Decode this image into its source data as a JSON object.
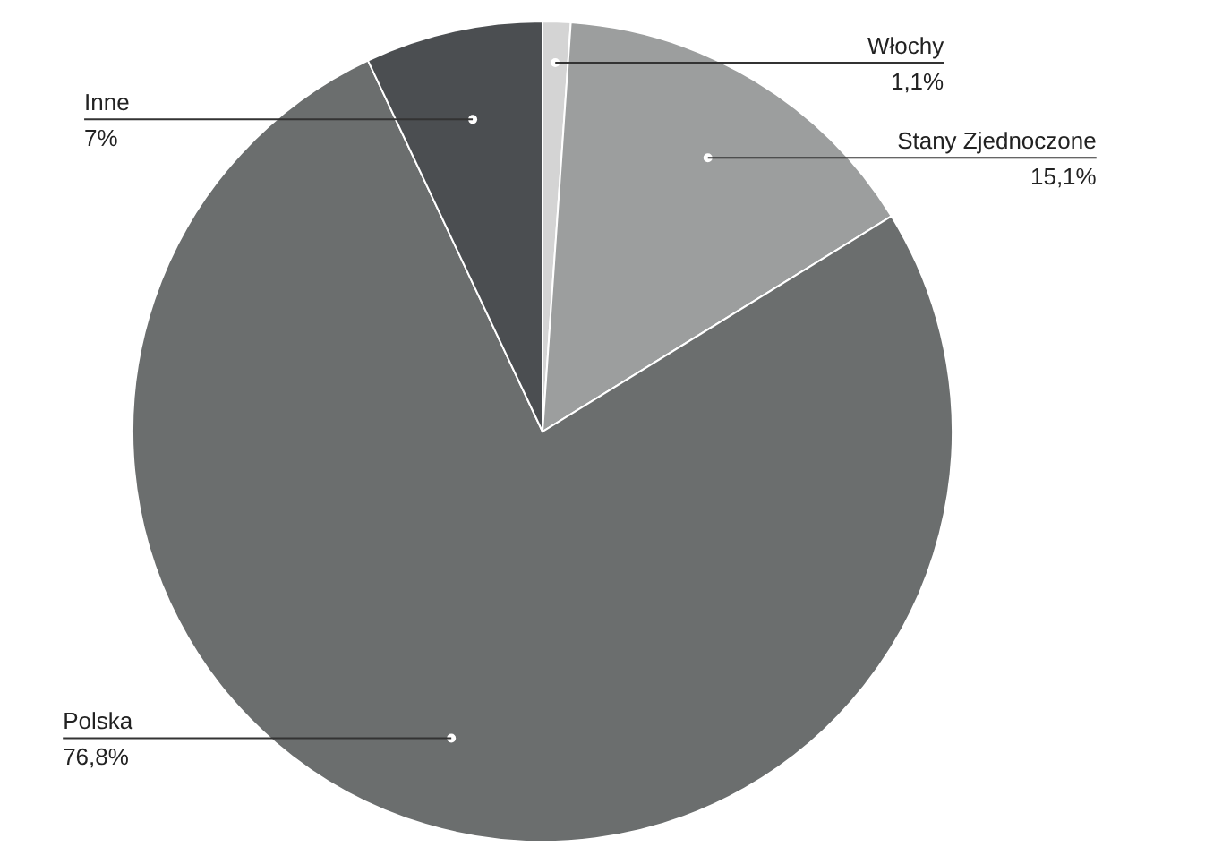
{
  "chart_data": {
    "type": "pie",
    "categories": [
      "Włochy",
      "Stany Zjednoczone",
      "Polska",
      "Inne"
    ],
    "values": [
      1.1,
      15.1,
      76.8,
      7
    ],
    "value_labels": [
      "1,1%",
      "15,1%",
      "76,8%",
      "7%"
    ],
    "colors": [
      "#d4d4d4",
      "#9c9e9e",
      "#6b6e6e",
      "#4b4e51"
    ],
    "legend": false
  }
}
